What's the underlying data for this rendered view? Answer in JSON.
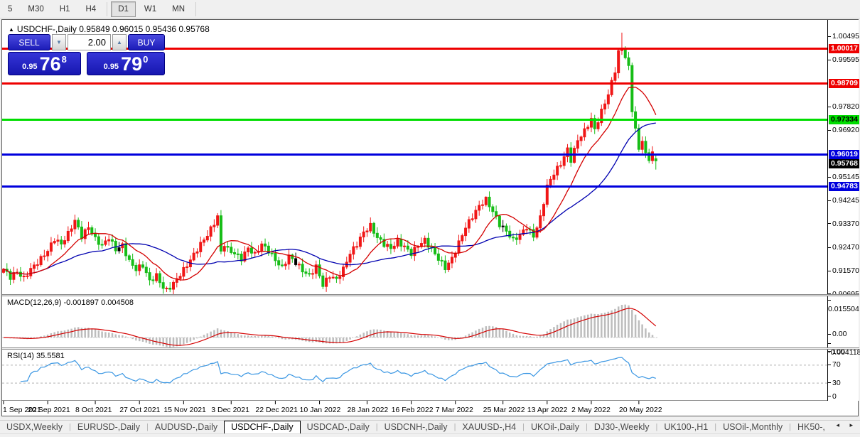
{
  "toolbar": {
    "items": [
      "5",
      "M30",
      "H1",
      "H4",
      "D1",
      "W1",
      "MN"
    ],
    "active": "D1"
  },
  "chart": {
    "collapse_arrow": "▲",
    "title_line": "USDCHF-,Daily  0.95849 0.96015 0.95436 0.95768",
    "trade_panel": {
      "sell_label": "SELL",
      "buy_label": "BUY",
      "spread_value": "2.00",
      "stepper_down": "▼",
      "stepper_up": "▲",
      "sell_price": {
        "small": "0.95",
        "big": "76",
        "sup": "8"
      },
      "buy_price": {
        "small": "0.95",
        "big": "79",
        "sup": "0"
      }
    }
  },
  "macd_panel": {
    "label": "MACD(12,26,9) -0.001897 0.004508"
  },
  "rsi_panel": {
    "label": "RSI(14) 35.5581"
  },
  "tabs": {
    "items": [
      "USDX,Weekly",
      "EURUSD-,Daily",
      "AUDUSD-,Daily",
      "USDCHF-,Daily",
      "USDCAD-,Daily",
      "USDCNH-,Daily",
      "XAUUSD-,H4",
      "UKOil-,Daily",
      "DJ30-,Weekly",
      "UK100-,H1",
      "USOil-,Monthly",
      "HK50-,"
    ],
    "active": "USDCHF-,Daily",
    "scroll_arrows": "◂ ▸"
  },
  "chart_data": {
    "type": "candlestick",
    "symbol": "USDCHF-",
    "timeframe": "Daily",
    "ohlc_current": {
      "open": 0.95849,
      "high": 0.96015,
      "low": 0.95436,
      "close": 0.95768
    },
    "colors": {
      "bull": "#f01717",
      "bear": "#17bd17",
      "doji": "#000000",
      "ma_fast": "#d40000",
      "ma_slow": "#0000b0",
      "macd_hist": "#bdbdbd",
      "macd_signal": "#d40000",
      "rsi_line": "#3b97e3"
    },
    "y_axis": {
      "min": 0.907,
      "max": 1.0107,
      "ticks": [
        1.00495,
        0.99595,
        0.9782,
        0.9692,
        0.95145,
        0.94245,
        0.9337,
        0.9247,
        0.9157,
        0.90695
      ]
    },
    "horizontal_lines": [
      {
        "label": "1.00017",
        "value": 1.00017,
        "color": "#ee0000",
        "text_color": "#ffffff",
        "line": true,
        "thickness": 3
      },
      {
        "label": "0.98709",
        "value": 0.98709,
        "color": "#ee0000",
        "text_color": "#ffffff",
        "line": true,
        "thickness": 3
      },
      {
        "label": "0.97334",
        "value": 0.97334,
        "color": "#00dd00",
        "text_color": "#000000",
        "line": true,
        "thickness": 3
      },
      {
        "label": "0.96019",
        "value": 0.96019,
        "color": "#0000dd",
        "text_color": "#ffffff",
        "line": true,
        "thickness": 3
      },
      {
        "label": "0.95768",
        "value": 0.95768,
        "color": "#000000",
        "text_color": "#ffffff",
        "line": false,
        "thickness": 0
      },
      {
        "label": "0.94783",
        "value": 0.94783,
        "color": "#0000dd",
        "text_color": "#ffffff",
        "line": true,
        "thickness": 3
      }
    ],
    "x_axis": {
      "labels": [
        "1 Sep 2021",
        "20 Sep 2021",
        "8 Oct 2021",
        "27 Oct 2021",
        "15 Nov 2021",
        "3 Dec 2021",
        "22 Dec 2021",
        "10 Jan 2022",
        "28 Jan 2022",
        "16 Feb 2022",
        "7 Mar 2022",
        "25 Mar 2022",
        "13 Apr 2022",
        "2 May 2022",
        "20 May 2022"
      ],
      "label_indices": [
        0,
        13,
        27,
        40,
        53,
        67,
        80,
        93,
        107,
        120,
        133,
        147,
        160,
        173,
        187
      ]
    },
    "moving_averages": [
      {
        "period": 12
      },
      {
        "period": 30
      }
    ],
    "candles": {
      "count": 193,
      "anchors": [
        [
          0,
          0.9165
        ],
        [
          2,
          0.9135
        ],
        [
          4,
          0.9155
        ],
        [
          6,
          0.913
        ],
        [
          8,
          0.9165
        ],
        [
          10,
          0.919
        ],
        [
          13,
          0.9235
        ],
        [
          15,
          0.928
        ],
        [
          17,
          0.926
        ],
        [
          19,
          0.93
        ],
        [
          21,
          0.935
        ],
        [
          23,
          0.929
        ],
        [
          25,
          0.9325
        ],
        [
          27,
          0.928
        ],
        [
          29,
          0.9255
        ],
        [
          31,
          0.9285
        ],
        [
          33,
          0.924
        ],
        [
          35,
          0.9255
        ],
        [
          37,
          0.9195
        ],
        [
          39,
          0.9165
        ],
        [
          41,
          0.918
        ],
        [
          43,
          0.912
        ],
        [
          45,
          0.914
        ],
        [
          47,
          0.9095
        ],
        [
          48,
          0.9085
        ],
        [
          50,
          0.911
        ],
        [
          52,
          0.9145
        ],
        [
          54,
          0.918
        ],
        [
          56,
          0.922
        ],
        [
          58,
          0.926
        ],
        [
          60,
          0.9295
        ],
        [
          62,
          0.934
        ],
        [
          63,
          0.9365
        ],
        [
          64,
          0.923
        ],
        [
          65,
          0.926
        ],
        [
          66,
          0.924
        ],
        [
          68,
          0.9225
        ],
        [
          70,
          0.9205
        ],
        [
          72,
          0.9245
        ],
        [
          74,
          0.922
        ],
        [
          76,
          0.926
        ],
        [
          78,
          0.9235
        ],
        [
          80,
          0.92
        ],
        [
          82,
          0.917
        ],
        [
          84,
          0.9215
        ],
        [
          86,
          0.919
        ],
        [
          88,
          0.916
        ],
        [
          90,
          0.914
        ],
        [
          92,
          0.9175
        ],
        [
          94,
          0.9105
        ],
        [
          96,
          0.914
        ],
        [
          98,
          0.9125
        ],
        [
          100,
          0.9165
        ],
        [
          102,
          0.9225
        ],
        [
          104,
          0.926
        ],
        [
          106,
          0.9305
        ],
        [
          108,
          0.933
        ],
        [
          110,
          0.9285
        ],
        [
          112,
          0.926
        ],
        [
          114,
          0.9245
        ],
        [
          116,
          0.927
        ],
        [
          118,
          0.925
        ],
        [
          120,
          0.9225
        ],
        [
          122,
          0.9255
        ],
        [
          124,
          0.9275
        ],
        [
          126,
          0.924
        ],
        [
          128,
          0.9205
        ],
        [
          130,
          0.917
        ],
        [
          132,
          0.9205
        ],
        [
          134,
          0.9265
        ],
        [
          136,
          0.9325
        ],
        [
          138,
          0.9365
        ],
        [
          140,
          0.9405
        ],
        [
          142,
          0.943
        ],
        [
          144,
          0.9385
        ],
        [
          146,
          0.9335
        ],
        [
          148,
          0.931
        ],
        [
          150,
          0.9275
        ],
        [
          152,
          0.9295
        ],
        [
          154,
          0.9325
        ],
        [
          156,
          0.929
        ],
        [
          158,
          0.936
        ],
        [
          160,
          0.948
        ],
        [
          162,
          0.953
        ],
        [
          164,
          0.9565
        ],
        [
          166,
          0.962
        ],
        [
          167,
          0.958
        ],
        [
          169,
          0.9655
        ],
        [
          171,
          0.969
        ],
        [
          173,
          0.9735
        ],
        [
          174,
          0.9695
        ],
        [
          176,
          0.9765
        ],
        [
          178,
          0.983
        ],
        [
          180,
          0.992
        ],
        [
          181,
          0.999
        ],
        [
          182,
          1.0005
        ],
        [
          183,
          0.9975
        ],
        [
          184,
          0.993
        ],
        [
          185,
          0.977
        ],
        [
          186,
          0.97
        ],
        [
          187,
          0.9615
        ],
        [
          188,
          0.966
        ],
        [
          189,
          0.96
        ],
        [
          190,
          0.958
        ],
        [
          191,
          0.9615
        ],
        [
          192,
          0.95768
        ]
      ],
      "overrides": {
        "48": {
          "l": 0.9078
        },
        "63": {
          "h": 0.9378
        },
        "94": {
          "l": 0.9089
        },
        "142": {
          "h": 0.9442
        },
        "182": {
          "h": 1.0064
        },
        "192": {
          "o": 0.95849,
          "h": 0.96015,
          "l": 0.95436,
          "c": 0.95768
        }
      },
      "dojis": [
        34,
        86,
        147
      ]
    },
    "macd": {
      "params": [
        12,
        26,
        9
      ],
      "current_main": -0.001897,
      "current_signal": 0.004508,
      "axis_labels": [
        "0.015504",
        "0.00",
        "-0.004118"
      ],
      "scale_max": 0.015504,
      "scale_min": -0.004118
    },
    "rsi": {
      "period": 14,
      "current": 35.5581,
      "levels": [
        70,
        30
      ],
      "axis_labels": [
        "100",
        "70",
        "30",
        "0"
      ],
      "scale": [
        0,
        100
      ]
    }
  }
}
